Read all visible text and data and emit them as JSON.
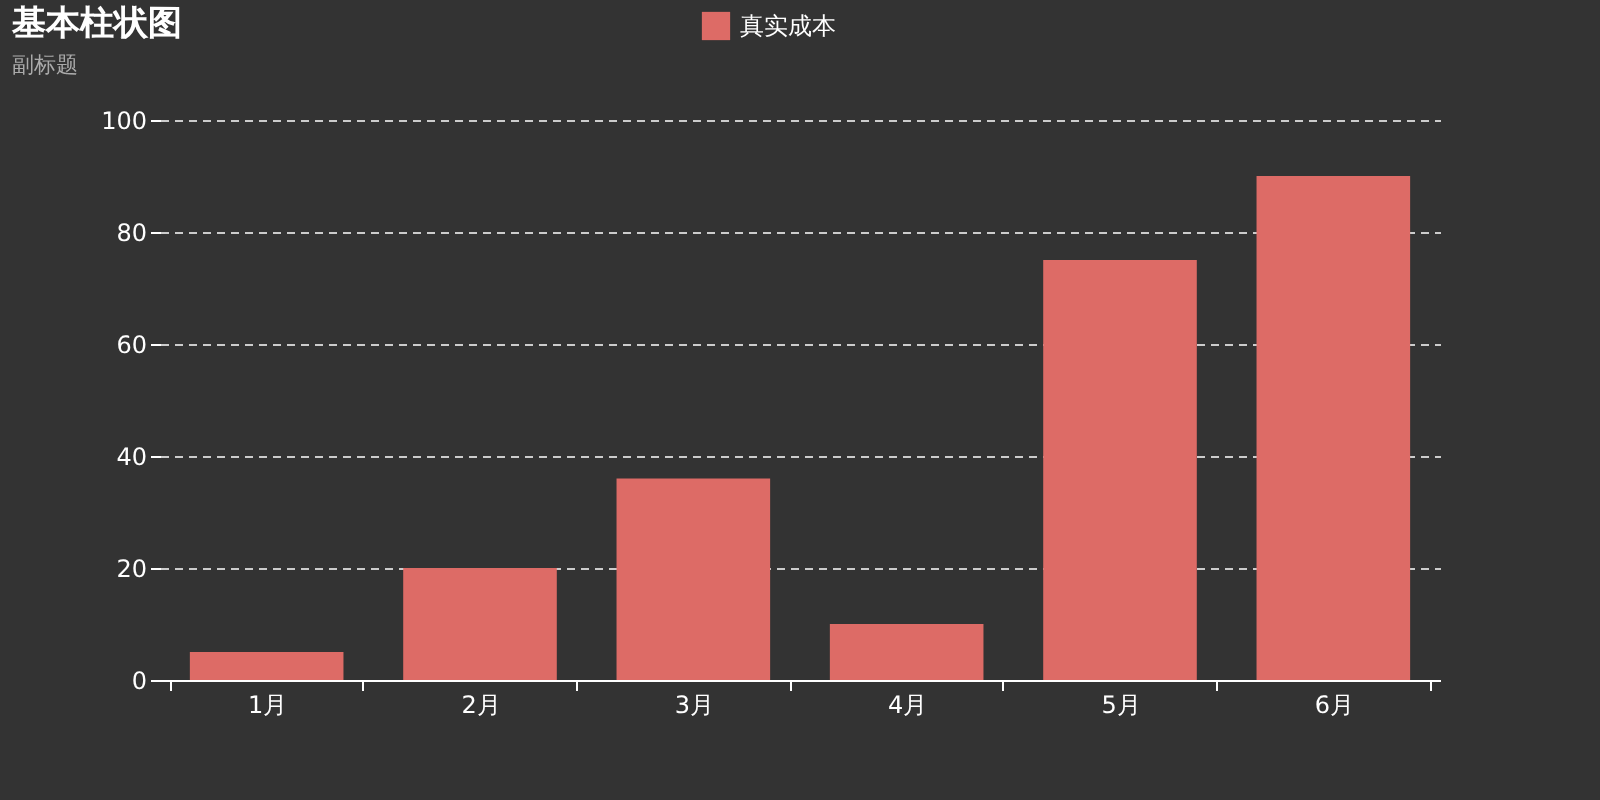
{
  "chart_data": {
    "type": "bar",
    "title": "基本柱状图",
    "subtitle": "副标题",
    "categories": [
      "1月",
      "2月",
      "3月",
      "4月",
      "5月",
      "6月"
    ],
    "series": [
      {
        "name": "真实成本",
        "color": "#dd6b66",
        "values": [
          5,
          20,
          36,
          10,
          75,
          90
        ]
      }
    ],
    "ylim": [
      0,
      100
    ],
    "yticks": [
      0,
      20,
      40,
      60,
      80,
      100
    ],
    "grid": "y",
    "legend": "top"
  }
}
